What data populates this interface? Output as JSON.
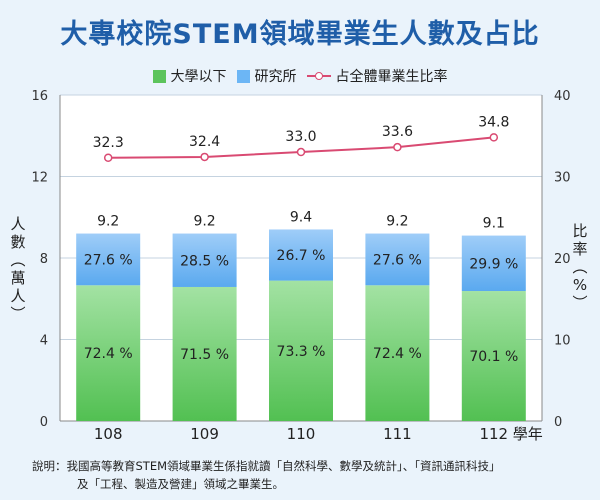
{
  "title": "大專校院STEM領域畢業生人數及占比",
  "legend": {
    "bachelor": "大學以下",
    "graduate": "研究所",
    "ratio": "占全體畢業生比率"
  },
  "axis": {
    "left_label": [
      "人",
      "數",
      "︵",
      "萬",
      "人",
      "︶"
    ],
    "right_label": [
      "比",
      "率",
      "︵",
      "%",
      "︶"
    ],
    "x_suffix": "學年"
  },
  "colors": {
    "bachelor_top": "#a3e2a3",
    "bachelor_bottom": "#52c052",
    "graduate_top": "#9fcdf8",
    "graduate_bottom": "#5aa9ef",
    "line": "#d94a72",
    "grid": "#c5d3e0",
    "tick": "#333333"
  },
  "chart_data": {
    "type": "bar",
    "stacked": true,
    "categories": [
      "108",
      "109",
      "110",
      "111",
      "112"
    ],
    "totals": [
      9.2,
      9.2,
      9.4,
      9.2,
      9.1
    ],
    "totals_labels": [
      "9.2",
      "9.2",
      "9.4",
      "9.2",
      "9.1"
    ],
    "series": [
      {
        "name": "大學以下",
        "share_pct": [
          72.4,
          71.5,
          73.3,
          72.4,
          70.1
        ],
        "labels": [
          "72.4 %",
          "71.5 %",
          "73.3 %",
          "72.4 %",
          "70.1 %"
        ]
      },
      {
        "name": "研究所",
        "share_pct": [
          27.6,
          28.5,
          26.7,
          27.6,
          29.9
        ],
        "labels": [
          "27.6 %",
          "28.5 %",
          "26.7 %",
          "27.6 %",
          "29.9 %"
        ]
      }
    ],
    "line_series": {
      "name": "占全體畢業生比率",
      "axis": "right",
      "values": [
        32.3,
        32.4,
        33.0,
        33.6,
        34.8
      ],
      "labels": [
        "32.3",
        "32.4",
        "33.0",
        "33.6",
        "34.8"
      ]
    },
    "y_left": {
      "min": 0,
      "max": 16,
      "ticks": [
        "0",
        "4",
        "8",
        "12",
        "16"
      ]
    },
    "y_right": {
      "min": 0,
      "max": 40,
      "ticks": [
        "0",
        "10",
        "20",
        "30",
        "40"
      ]
    },
    "grid": true,
    "legend_position": "top"
  },
  "note": {
    "line1": "說明：我國高等教育STEM領域畢業生係指就讀「自然科學、數學及統計」、「資訊通訊科技」",
    "line2": "及「工程、製造及營建」領域之畢業生。"
  }
}
